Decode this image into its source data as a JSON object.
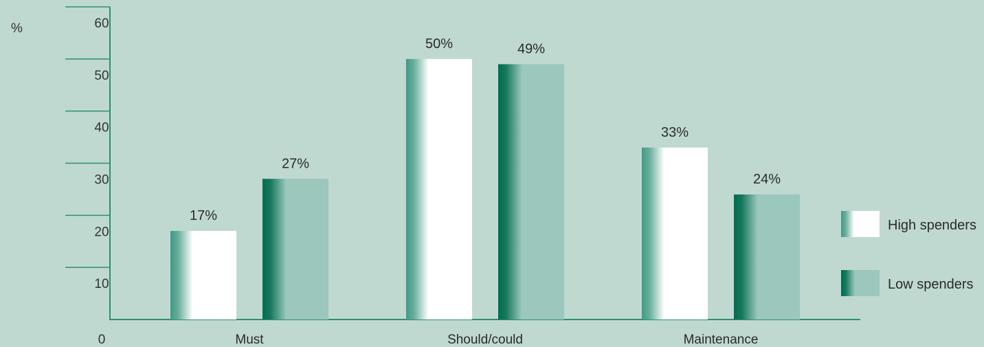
{
  "chart_data": {
    "type": "bar",
    "ylabel": "%",
    "categories": [
      "Must",
      "Should/could",
      "Maintenance"
    ],
    "series": [
      {
        "name": "High spenders",
        "values": [
          17,
          50,
          33
        ],
        "labels": [
          "17%",
          "50%",
          "33%"
        ]
      },
      {
        "name": "Low spenders",
        "values": [
          27,
          49,
          24
        ],
        "labels": [
          "27%",
          "49%",
          "24%"
        ]
      }
    ],
    "ylim": [
      0,
      60
    ],
    "yticks": [
      0,
      10,
      20,
      30,
      40,
      50,
      60
    ],
    "grid": false,
    "legend": "right",
    "colors": {
      "background": "#bfd9d0",
      "axis": "#2e8f74",
      "high_dark": "#3f9a86",
      "high_light": "#ffffff",
      "low_dark": "#006e50",
      "low_light": "#9bc7bc"
    }
  }
}
